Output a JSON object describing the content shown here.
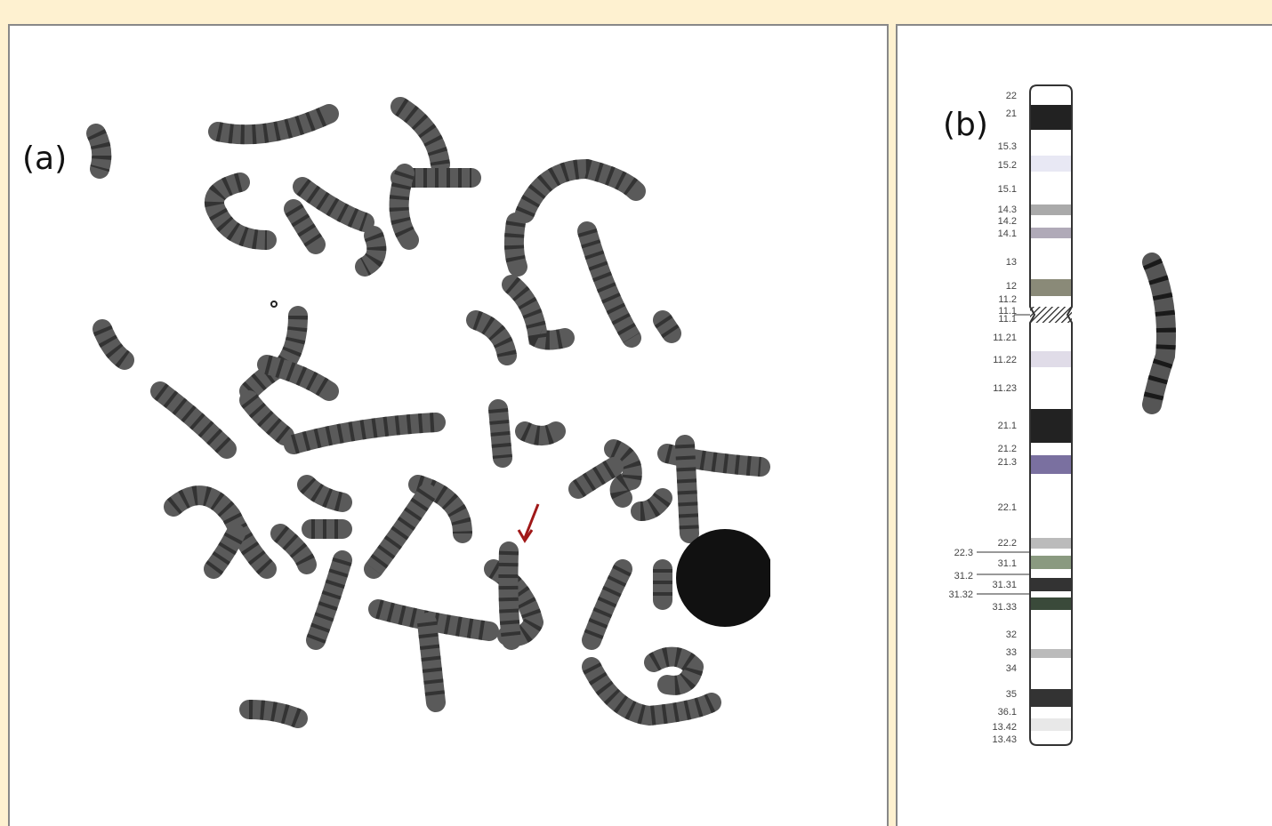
{
  "panel_a": {
    "label": "(a)"
  },
  "panel_b": {
    "label": "(b)",
    "bands_right": [
      "22",
      "21",
      "15.3",
      "15.2",
      "15.1",
      "14.3",
      "14.2",
      "14.1",
      "13",
      "12",
      "11.2",
      "11.1",
      "11.1",
      "11.21",
      "11.22",
      "11.23",
      "21.1",
      "21.2",
      "21.3",
      "22.1",
      "22.2",
      "31.1",
      "31.31",
      "31.33",
      "32",
      "33",
      "34",
      "35",
      "36.1",
      "13.42",
      "13.43"
    ],
    "bands_left": [
      "22.3",
      "31.2",
      "31.32"
    ]
  }
}
